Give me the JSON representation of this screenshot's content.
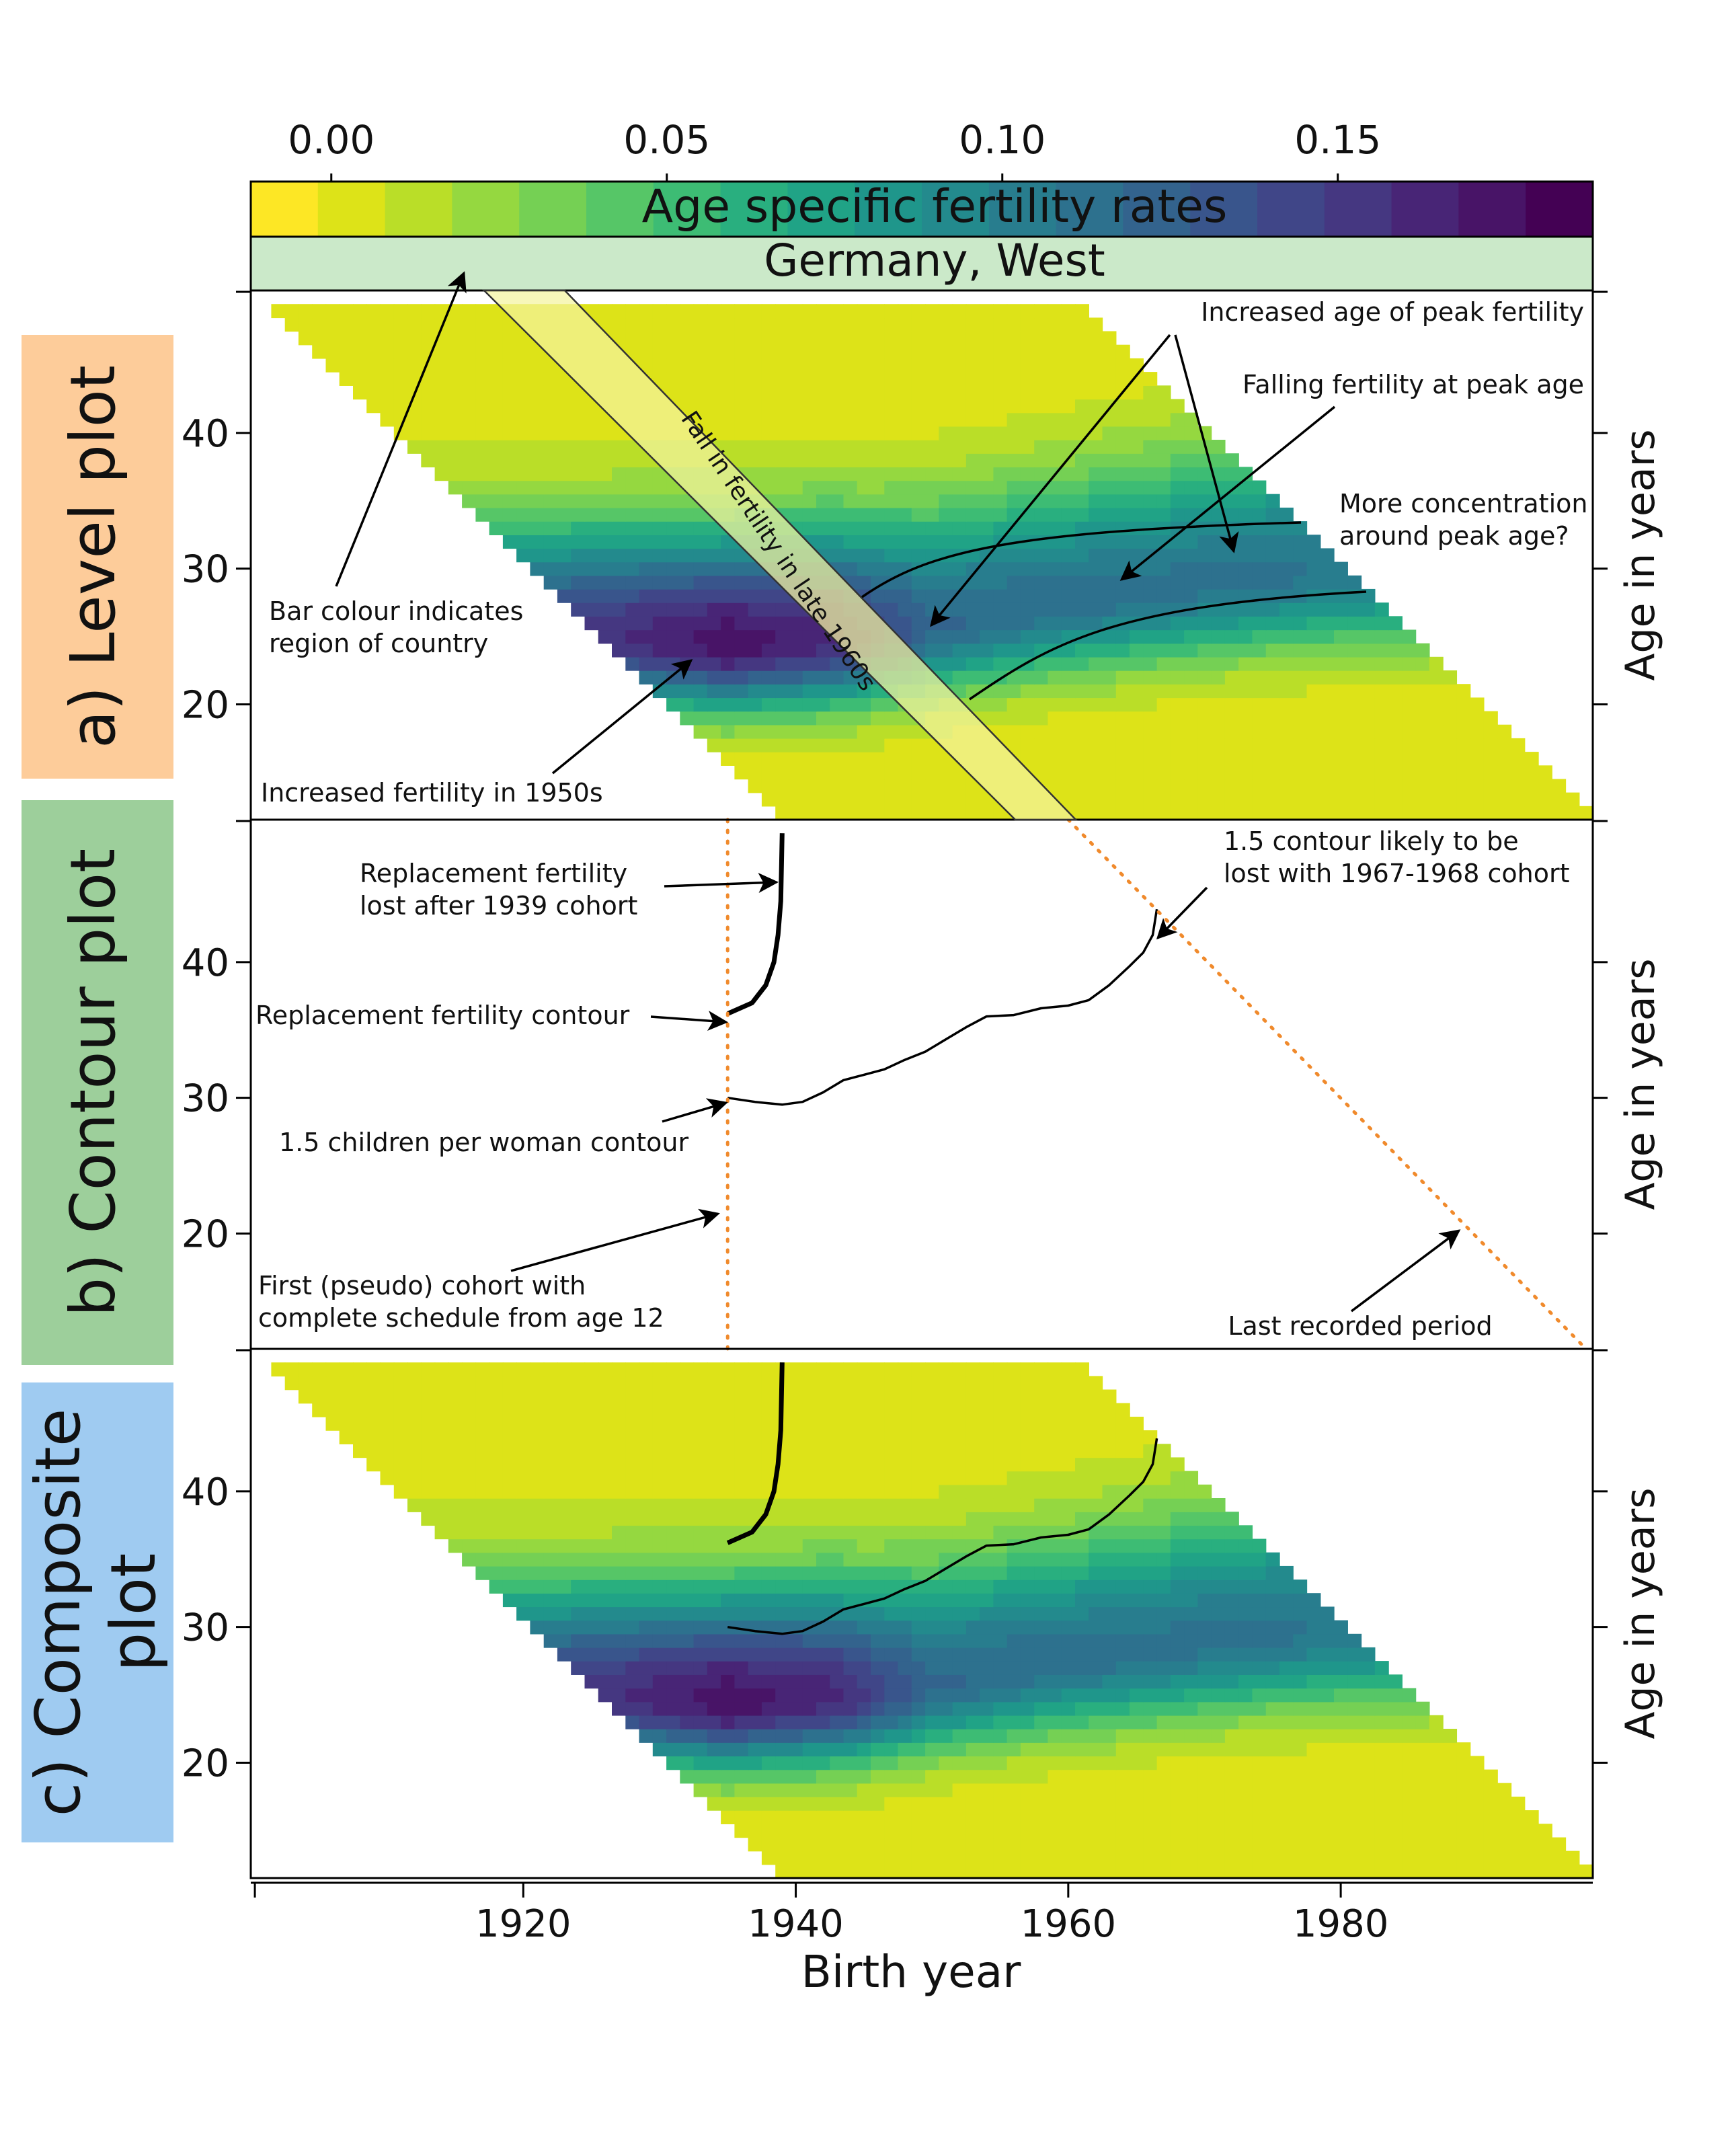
{
  "chart_data": {
    "type": "heatmap",
    "title": "Germany, West",
    "colorbar": {
      "label": "Age specific fertility rates",
      "ticks": [
        "0.00",
        "0.05",
        "0.10",
        "0.15"
      ],
      "tick_values": [
        0.0,
        0.05,
        0.1,
        0.15
      ],
      "range": [
        -0.012,
        0.188
      ],
      "colors": [
        "#fde725",
        "#dde318",
        "#bade28",
        "#95d840",
        "#75d054",
        "#56c667",
        "#3dbc74",
        "#29af7f",
        "#20a386",
        "#1f968b",
        "#238a8d",
        "#287d8e",
        "#2d718e",
        "#33638d",
        "#39558c",
        "#404688",
        "#453781",
        "#482576",
        "#481467",
        "#440154"
      ]
    },
    "xlabel": "Birth year",
    "ylabel": "Age in years",
    "x_ticks": [
      1920,
      1940,
      1960,
      1980
    ],
    "y_ticks": [
      20,
      30,
      40
    ],
    "xlim": [
      1900,
      1998.5
    ],
    "ylim": [
      11.5,
      50.5
    ],
    "grid": false,
    "data_extent": {
      "first_period": 1951,
      "last_period": 2010,
      "min_age": 12,
      "max_age": 49
    },
    "surface_model": {
      "description": "approximate age-specific fertility rate by cohort and age",
      "peak_age_by_cohort": [
        [
          1905,
          26
        ],
        [
          1935,
          24.5
        ],
        [
          1945,
          25
        ],
        [
          1960,
          27.5
        ],
        [
          1975,
          29.5
        ],
        [
          1990,
          30.5
        ]
      ],
      "peak_rate_by_cohort": [
        [
          1905,
          0.13
        ],
        [
          1920,
          0.14
        ],
        [
          1935,
          0.175
        ],
        [
          1943,
          0.16
        ],
        [
          1950,
          0.12
        ],
        [
          1960,
          0.112
        ],
        [
          1975,
          0.11
        ],
        [
          1990,
          0.1
        ]
      ]
    },
    "contours": [
      {
        "label": "Replacement fertility contour",
        "points": [
          [
            1935,
            36.2
          ],
          [
            1936.8,
            37
          ],
          [
            1937.8,
            38.3
          ],
          [
            1938.4,
            40
          ],
          [
            1938.7,
            42
          ],
          [
            1938.9,
            44.5
          ],
          [
            1939,
            49.5
          ]
        ]
      },
      {
        "label": "1.5 children per woman contour",
        "points": [
          [
            1935,
            30
          ],
          [
            1937,
            29.7
          ],
          [
            1939,
            29.5
          ],
          [
            1940.5,
            29.7
          ],
          [
            1942,
            30.4
          ],
          [
            1943.5,
            31.3
          ],
          [
            1945,
            31.7
          ],
          [
            1946.5,
            32.1
          ],
          [
            1948,
            32.8
          ],
          [
            1949.5,
            33.4
          ],
          [
            1951,
            34.3
          ],
          [
            1952.5,
            35.2
          ],
          [
            1954,
            36
          ],
          [
            1956,
            36.1
          ],
          [
            1958,
            36.6
          ],
          [
            1960,
            36.8
          ],
          [
            1961.5,
            37.2
          ],
          [
            1963,
            38.3
          ],
          [
            1964.5,
            39.7
          ],
          [
            1965.5,
            40.7
          ],
          [
            1966.2,
            42
          ],
          [
            1966.5,
            43.9
          ]
        ]
      }
    ],
    "reference_lines": [
      {
        "label": "First (pseudo) cohort with complete schedule from age 12",
        "x": 1935
      },
      {
        "label": "Last recorded period",
        "period": 2010
      }
    ],
    "panels": [
      {
        "id": "level",
        "label": "a) Level plot",
        "color": "#fdcc9a"
      },
      {
        "id": "contour",
        "label": "b) Contour plot",
        "color": "#9dcf9b"
      },
      {
        "id": "composite",
        "label": "c) Composite plot",
        "color": "#9fcbf1"
      }
    ],
    "annotations": {
      "increased_age_peak": "Increased age of peak fertility",
      "falling_fertility_peak": "Falling fertility at peak age",
      "more_concentration": [
        "More concentration",
        "around peak age?"
      ],
      "bar_colour": [
        "Bar colour indicates",
        "region of country"
      ],
      "increased_1950s": "Increased fertility in 1950s",
      "fall_late_1960s": "Fall in fertility in late 1960s",
      "replacement_lost": [
        "Replacement fertility",
        "lost after 1939 cohort"
      ],
      "contour_15_lost": [
        "1.5 contour likely to be",
        "lost with 1967-1968 cohort"
      ],
      "replacement_contour": "Replacement fertility contour",
      "contour_15": "1.5 children per woman contour",
      "first_cohort": [
        "First (pseudo) cohort with",
        "complete schedule from age 12"
      ],
      "last_period": "Last recorded period"
    }
  }
}
